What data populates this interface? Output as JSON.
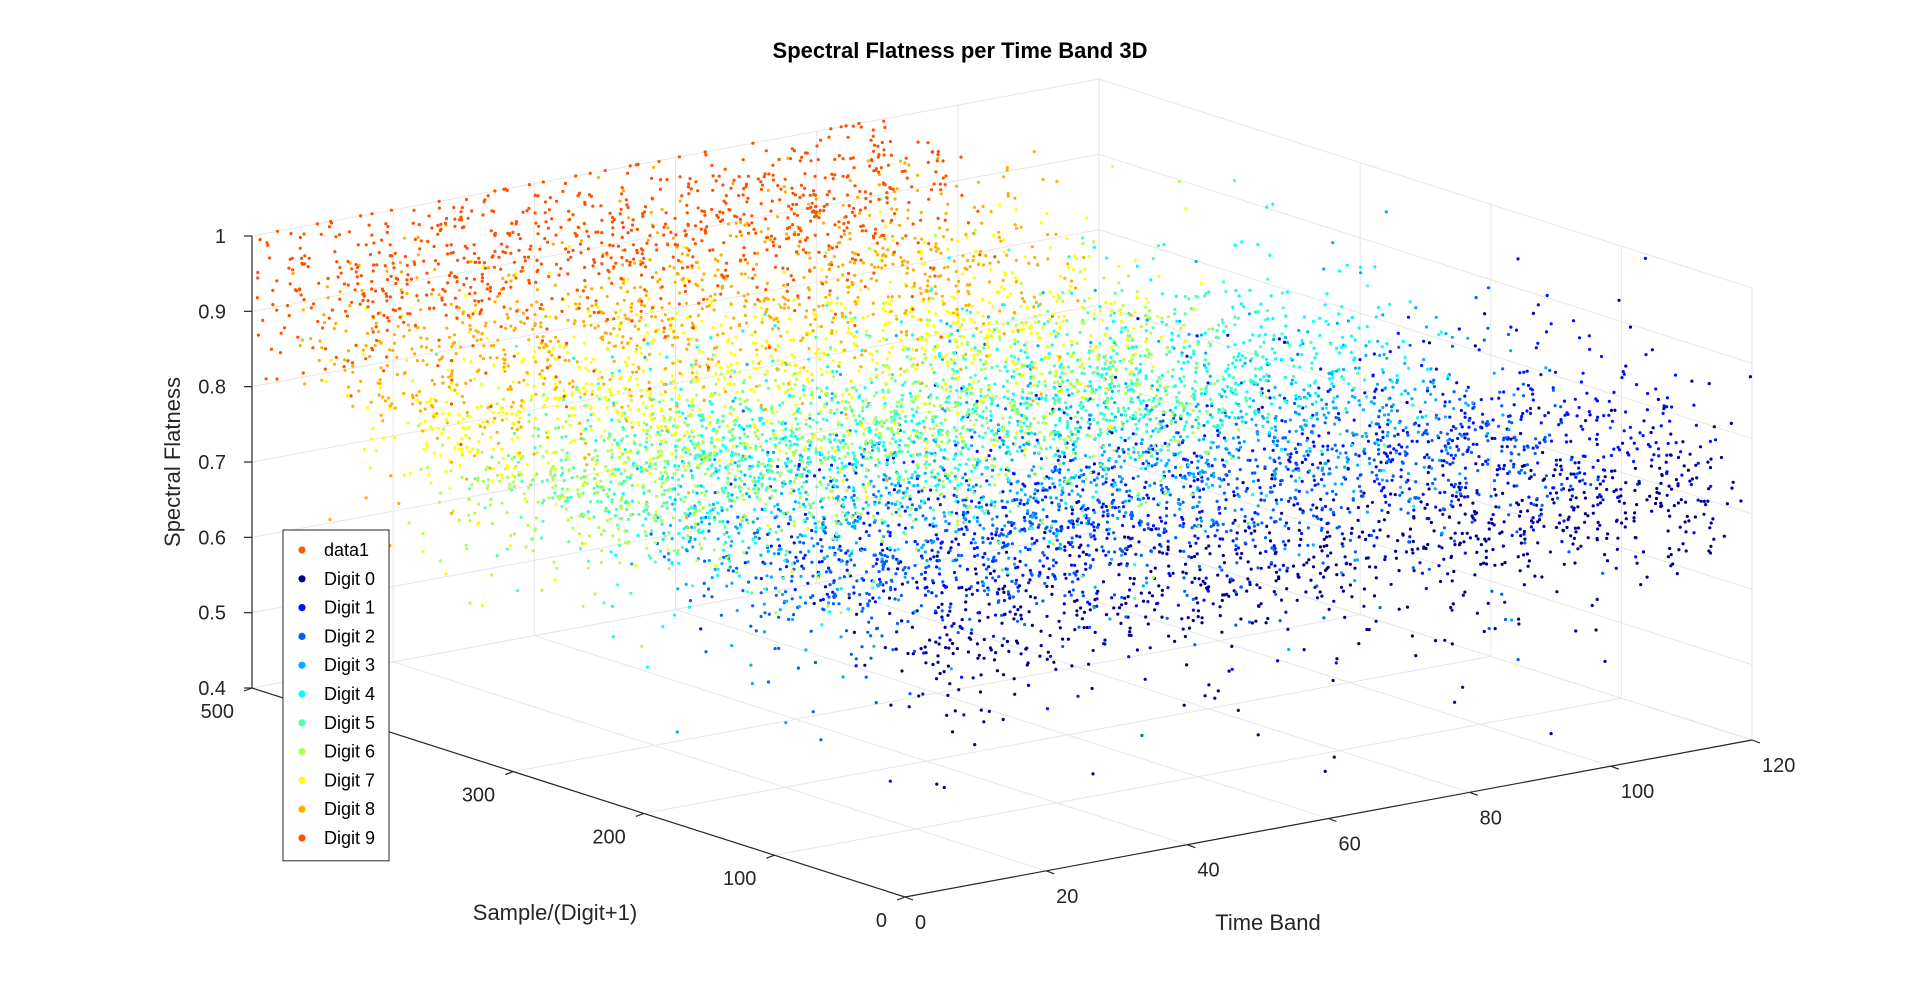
{
  "chart_data": {
    "type": "scatter",
    "title": "Spectral Flatness per Time Band 3D",
    "xlabel": "Time Band",
    "ylabel": "Sample/(Digit+1)",
    "zlabel": "Spectral Flatness",
    "xlim": [
      0,
      120
    ],
    "ylim": [
      0,
      500
    ],
    "zlim": [
      0.4,
      1
    ],
    "x_ticks": [
      "0",
      "20",
      "40",
      "60",
      "80",
      "100",
      "120"
    ],
    "y_ticks": [
      "0",
      "100",
      "200",
      "300",
      "500"
    ],
    "z_ticks": [
      "0.4",
      "0.5",
      "0.6",
      "0.7",
      "0.8",
      "0.9",
      "1"
    ],
    "grid": true,
    "legend_position": "bottom-left",
    "legend": [
      "data1",
      "Digit 0",
      "Digit 1",
      "Digit 2",
      "Digit 3",
      "Digit 4",
      "Digit 5",
      "Digit 6",
      "Digit 7",
      "Digit 8",
      "Digit 9"
    ],
    "series": [
      {
        "name": "Digit 0",
        "color": "#00008f",
        "x_range": [
          5,
          120
        ],
        "mean_flatness": 0.72
      },
      {
        "name": "Digit 1",
        "color": "#0010ff",
        "x_range": [
          0,
          120
        ],
        "mean_flatness": 0.8
      },
      {
        "name": "Digit 2",
        "color": "#0060ff",
        "x_range": [
          0,
          115
        ],
        "mean_flatness": 0.74
      },
      {
        "name": "Digit 3",
        "color": "#00afff",
        "x_range": [
          0,
          110
        ],
        "mean_flatness": 0.78
      },
      {
        "name": "Digit 4",
        "color": "#00ffff",
        "x_range": [
          0,
          110
        ],
        "mean_flatness": 0.82
      },
      {
        "name": "Digit 5",
        "color": "#50ffaf",
        "x_range": [
          0,
          105
        ],
        "mean_flatness": 0.78
      },
      {
        "name": "Digit 6",
        "color": "#afff50",
        "x_range": [
          0,
          100
        ],
        "mean_flatness": 0.74
      },
      {
        "name": "Digit 7",
        "color": "#ffff00",
        "x_range": [
          0,
          100
        ],
        "mean_flatness": 0.8
      },
      {
        "name": "Digit 8",
        "color": "#ffaf00",
        "x_range": [
          0,
          95
        ],
        "mean_flatness": 0.86
      },
      {
        "name": "Digit 9",
        "color": "#ff5000",
        "x_range": [
          0,
          90
        ],
        "mean_flatness": 0.93
      }
    ],
    "legend_colors": [
      "#f2600c",
      "#00008f",
      "#0010ff",
      "#0060ff",
      "#00afff",
      "#00ffff",
      "#50ffaf",
      "#afff50",
      "#ffff00",
      "#ffaf00",
      "#ff5000"
    ]
  }
}
